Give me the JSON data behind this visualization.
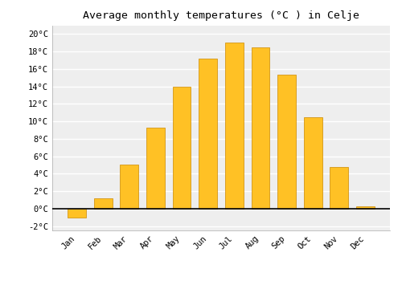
{
  "months": [
    "Jan",
    "Feb",
    "Mar",
    "Apr",
    "May",
    "Jun",
    "Jul",
    "Aug",
    "Sep",
    "Oct",
    "Nov",
    "Dec"
  ],
  "temperatures": [
    -1.0,
    1.2,
    5.0,
    9.3,
    14.0,
    17.2,
    19.0,
    18.5,
    15.3,
    10.5,
    4.8,
    0.3
  ],
  "bar_color": "#FFC125",
  "bar_edge_color": "#CC8800",
  "title": "Average monthly temperatures (°C ) in Celje",
  "ylim": [
    -2.5,
    21
  ],
  "yticks": [
    -2,
    0,
    2,
    4,
    6,
    8,
    10,
    12,
    14,
    16,
    18,
    20
  ],
  "plot_bg_color": "#eeeeee",
  "fig_bg_color": "#ffffff",
  "grid_color": "#ffffff",
  "title_fontsize": 9.5,
  "tick_fontsize": 7.5,
  "bar_width": 0.7
}
